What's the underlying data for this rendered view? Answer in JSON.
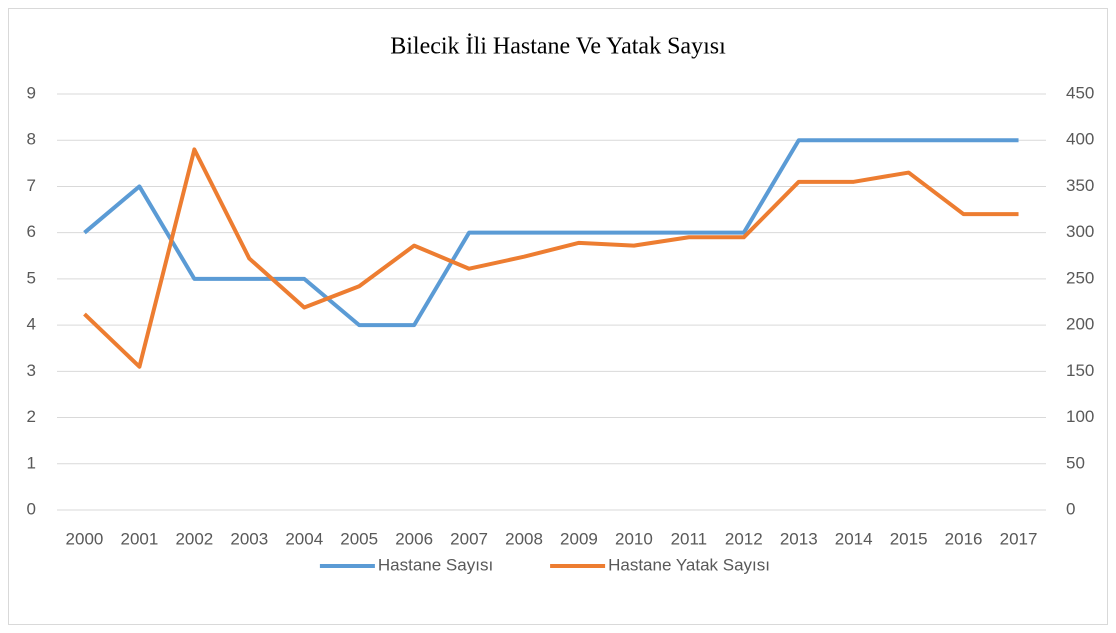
{
  "chart_data": {
    "type": "line",
    "title": "Bilecik İli Hastane Ve Yatak Sayısı",
    "categories": [
      "2000",
      "2001",
      "2002",
      "2003",
      "2004",
      "2005",
      "2006",
      "2007",
      "2008",
      "2009",
      "2010",
      "2011",
      "2012",
      "2013",
      "2014",
      "2015",
      "2016",
      "2017"
    ],
    "series": [
      {
        "name": "Hastane Sayısı",
        "color": "#5b9bd5",
        "values": [
          6,
          7,
          5,
          5,
          5,
          4,
          4,
          6,
          6,
          6,
          6,
          6,
          6,
          8,
          8,
          8,
          8,
          8
        ]
      },
      {
        "name": "Hastane Yatak Sayısı",
        "color": "#ed7d31",
        "axis": "y2",
        "values": [
          212,
          155,
          390,
          272,
          219,
          242,
          286,
          261,
          274,
          289,
          286,
          295,
          295,
          355,
          355,
          365,
          320,
          320
        ]
      }
    ],
    "ylim": [
      0,
      9
    ],
    "yticks": [
      0,
      1,
      2,
      3,
      4,
      5,
      6,
      7,
      8,
      9
    ],
    "y2lim": [
      0,
      450
    ],
    "y2ticks": [
      0,
      50,
      100,
      150,
      200,
      250,
      300,
      350,
      400,
      450
    ],
    "grid": true,
    "legend": "bottom"
  }
}
